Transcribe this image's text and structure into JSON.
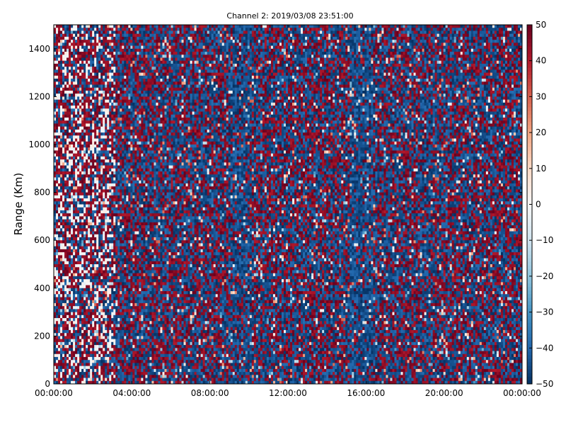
{
  "chart_data": {
    "type": "heatmap",
    "title": "Channel 2: 2019/03/08 23:51:00",
    "ylabel": "Range (Km)",
    "xlabel": "",
    "x_ticks": [
      "00:00:00",
      "04:00:00",
      "08:00:00",
      "12:00:00",
      "16:00:00",
      "20:00:00",
      "00:00:00"
    ],
    "y_ticks": [
      0,
      200,
      400,
      600,
      800,
      1000,
      1200,
      1400
    ],
    "ylim": [
      0,
      1500
    ],
    "colorbar": {
      "ticks": [
        50,
        40,
        30,
        20,
        10,
        0,
        -10,
        -20,
        -30,
        -40,
        -50
      ],
      "range": [
        -50,
        50
      ],
      "colormap": [
        "#053061",
        "#2166ac",
        "#4393c3",
        "#92c5de",
        "#d1e5f0",
        "#f7f7f7",
        "#fddbc7",
        "#f4a582",
        "#d6604d",
        "#b2182b",
        "#67001f"
      ]
    },
    "grid": false
  }
}
